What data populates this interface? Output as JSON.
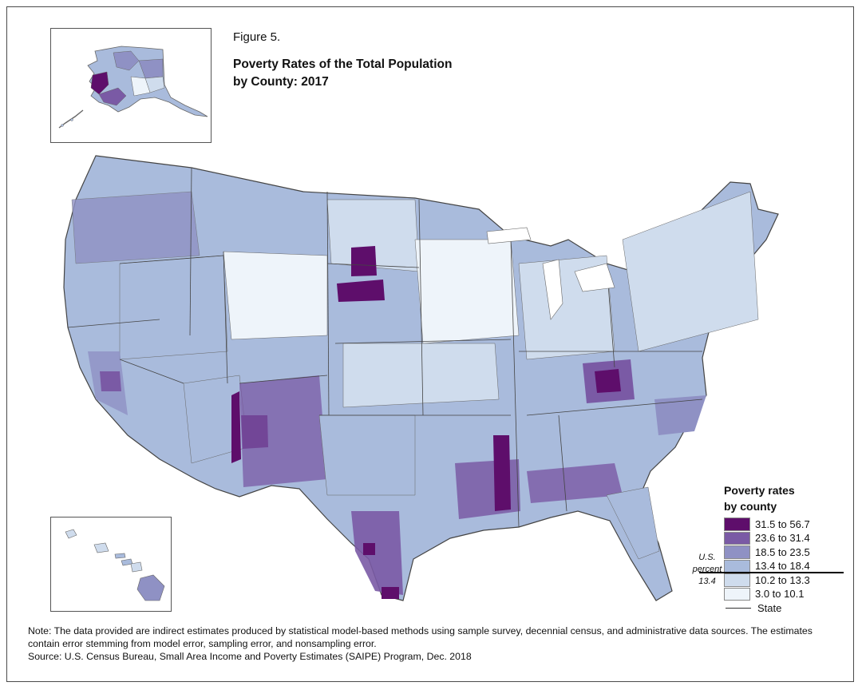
{
  "figure": {
    "number": "Figure 5.",
    "title_line1": "Poverty Rates of the Total Population",
    "title_line2": "by County: 2017"
  },
  "legend": {
    "title_line1": "Poverty rates",
    "title_line2": "by county",
    "classes": [
      {
        "label": "31.5 to 56.7",
        "color": "#5e0e6b"
      },
      {
        "label": "23.6 to 31.4",
        "color": "#7a5aa5"
      },
      {
        "label": "18.5 to 23.5",
        "color": "#8f91c4"
      },
      {
        "label": "13.4 to 18.4",
        "color": "#a9bbdc"
      },
      {
        "label": "10.2 to 13.3",
        "color": "#cfdced"
      },
      {
        "label": "3.0 to 10.1",
        "color": "#eef4fa"
      }
    ],
    "us_percent": {
      "line1": "U.S.",
      "line2": "percent",
      "line3": "13.4"
    },
    "state_label": "State"
  },
  "notes": {
    "note": "Note: The data provided are indirect estimates produced by statistical model-based methods using sample survey, decennial census, and administrative data sources. The estimates contain error stemming from model error, sampling error, and nonsampling error.",
    "source": "Source: U.S. Census Bureau, Small Area Income and Poverty Estimates (SAIPE) Program, Dec. 2018"
  },
  "map": {
    "insets": [
      "alaska-inset",
      "hawaii-inset"
    ],
    "border_color": "#444444"
  }
}
